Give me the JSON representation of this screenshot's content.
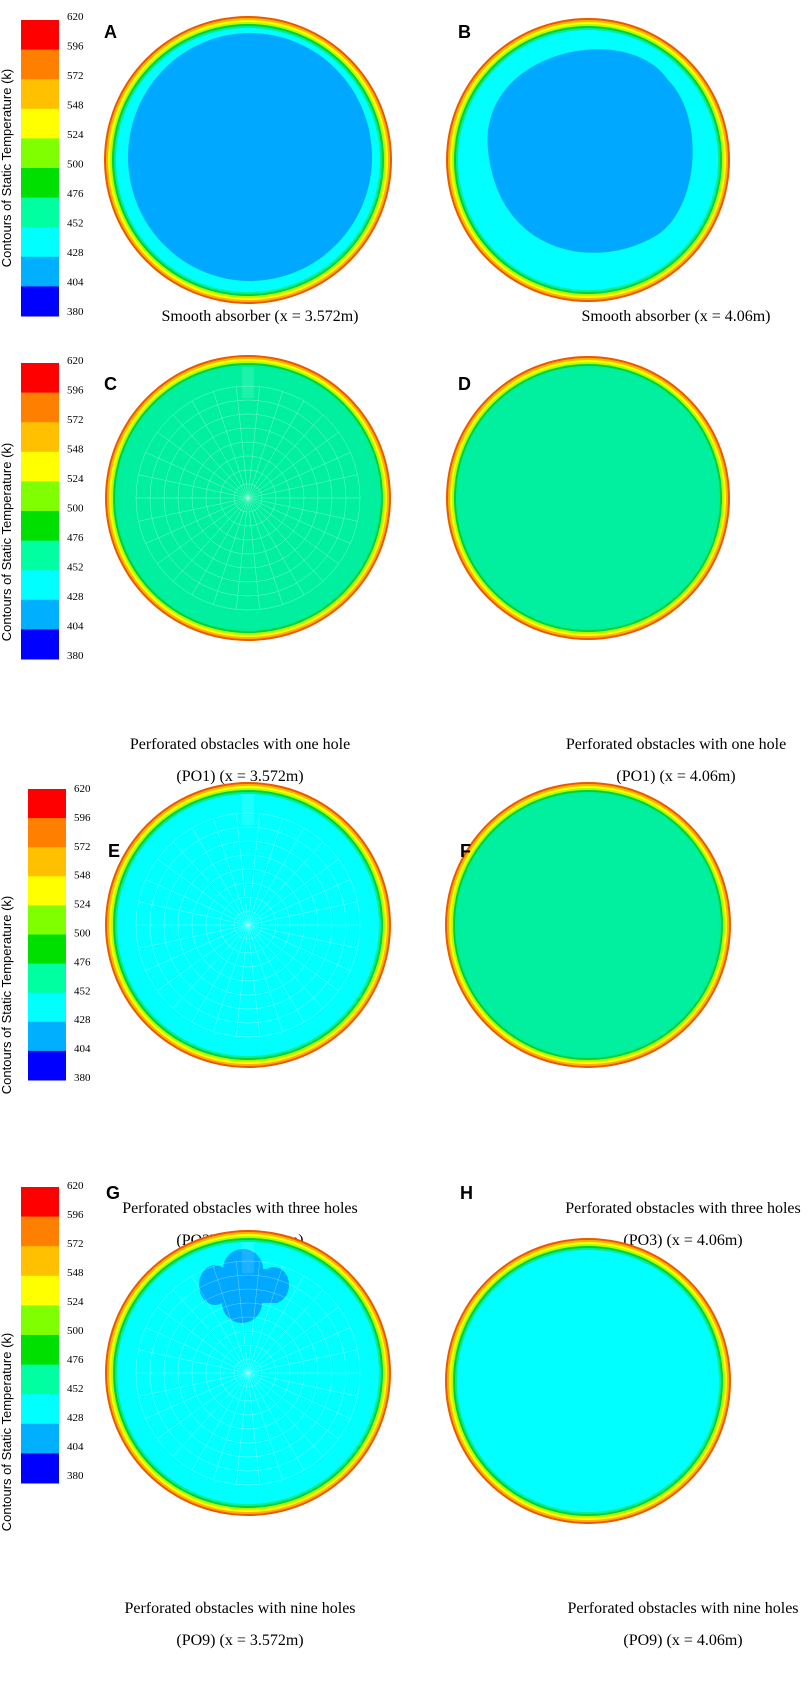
{
  "legend": {
    "title": "Contours of Static Temperature (k)",
    "ticks": [
      "620",
      "596",
      "572",
      "548",
      "524",
      "500",
      "476",
      "452",
      "428",
      "404",
      "380"
    ],
    "colors": [
      "#ff0000",
      "#ff8000",
      "#ffc000",
      "#ffff00",
      "#80ff00",
      "#00e000",
      "#00ffa0",
      "#00ffff",
      "#00b0ff",
      "#0000ff"
    ]
  },
  "panels": [
    {
      "letter": "A",
      "fill": "#00ffff",
      "core": "#00a8ff",
      "core_shape": "large",
      "caption": [
        "Smooth absorber (x = 3.572m)"
      ]
    },
    {
      "letter": "B",
      "fill": "#00ffff",
      "core": "#00a8ff",
      "core_shape": "medium",
      "caption": [
        "Smooth absorber (x = 4.06m)"
      ]
    },
    {
      "letter": "C",
      "fill": "#00f0a0",
      "core": null,
      "core_shape": "mesh",
      "caption": [
        "Perforated obstacles with one hole",
        "(PO1)        (x = 3.572m)"
      ]
    },
    {
      "letter": "D",
      "fill": "#00f0a0",
      "core": null,
      "core_shape": "none",
      "caption": [
        "Perforated obstacles with one hole",
        "(PO1)        (x = 4.06m)"
      ]
    },
    {
      "letter": "E",
      "fill": "#00ffff",
      "core": null,
      "core_shape": "mesh",
      "caption": [
        "Perforated obstacles with three holes",
        "(PO3) (x = 3.572m)"
      ]
    },
    {
      "letter": "F",
      "fill": "#00f0a0",
      "core": null,
      "core_shape": "none",
      "caption": [
        "Perforated obstacles with three holes",
        "(PO3) (x = 4.06m)"
      ]
    },
    {
      "letter": "G",
      "fill": "#00ffff",
      "core": "#00a8ff",
      "core_shape": "lobes",
      "caption": [
        "Perforated obstacles with nine holes",
        "(PO9)   (x = 3.572m)"
      ]
    },
    {
      "letter": "H",
      "fill": "#00ffff",
      "core": null,
      "core_shape": "none",
      "caption": [
        "Perforated obstacles with nine holes",
        "(PO9)   (x = 4.06m)"
      ]
    }
  ]
}
